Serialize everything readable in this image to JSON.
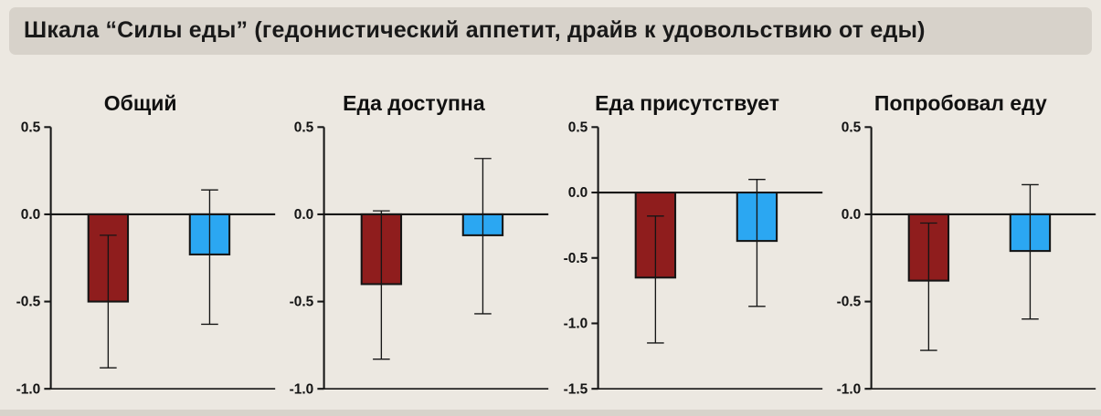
{
  "page": {
    "title": "Шкала “Силы еды” (гедонистический аппетит, драйв к удовольствию от еды)"
  },
  "colors": {
    "background": "#ece8e1",
    "title_bar": "#d7d2ca",
    "axis": "#151515",
    "bar_red": "#8f1d1d",
    "bar_blue": "#2ba7f2"
  },
  "chart_data": [
    {
      "type": "bar",
      "title": "Общий",
      "ylim": [
        -1.0,
        0.5
      ],
      "yticks": [
        0.5,
        0.0,
        -0.5,
        -1.0
      ],
      "grid": false,
      "series": [
        {
          "name": "red-bar",
          "color": "bar_red",
          "value": -0.5,
          "err_high": -0.12,
          "err_low": -0.88
        },
        {
          "name": "blue-bar",
          "color": "bar_blue",
          "value": -0.23,
          "err_high": 0.14,
          "err_low": -0.63
        }
      ]
    },
    {
      "type": "bar",
      "title": "Еда доступна",
      "ylim": [
        -1.0,
        0.5
      ],
      "yticks": [
        0.5,
        0.0,
        -0.5,
        -1.0
      ],
      "grid": false,
      "series": [
        {
          "name": "red-bar",
          "color": "bar_red",
          "value": -0.4,
          "err_high": 0.02,
          "err_low": -0.83
        },
        {
          "name": "blue-bar",
          "color": "bar_blue",
          "value": -0.12,
          "err_high": 0.32,
          "err_low": -0.57
        }
      ]
    },
    {
      "type": "bar",
      "title": "Еда присутствует",
      "ylim": [
        -1.5,
        0.5
      ],
      "yticks": [
        0.5,
        0.0,
        -0.5,
        -1.0,
        -1.5
      ],
      "grid": false,
      "series": [
        {
          "name": "red-bar",
          "color": "bar_red",
          "value": -0.65,
          "err_high": -0.18,
          "err_low": -1.15
        },
        {
          "name": "blue-bar",
          "color": "bar_blue",
          "value": -0.37,
          "err_high": 0.1,
          "err_low": -0.87
        }
      ]
    },
    {
      "type": "bar",
      "title": "Попробовал еду",
      "ylim": [
        -1.0,
        0.5
      ],
      "yticks": [
        0.5,
        0.0,
        -0.5,
        -1.0
      ],
      "grid": false,
      "series": [
        {
          "name": "red-bar",
          "color": "bar_red",
          "value": -0.38,
          "err_high": -0.05,
          "err_low": -0.78
        },
        {
          "name": "blue-bar",
          "color": "bar_blue",
          "value": -0.21,
          "err_high": 0.17,
          "err_low": -0.6
        }
      ]
    }
  ]
}
